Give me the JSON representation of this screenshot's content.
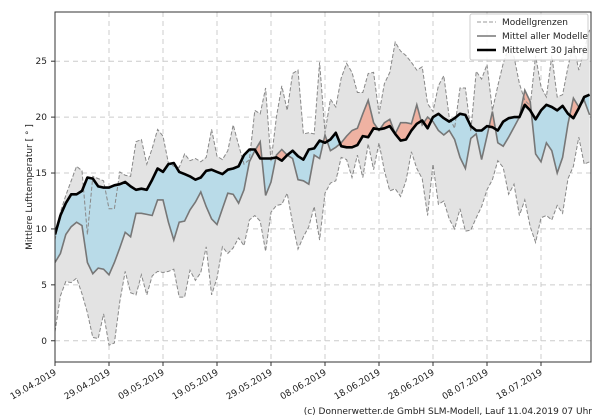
{
  "chart_data": {
    "type": "line",
    "ylabel": "Mittlere Lufttemperatur [ ° ]",
    "xlabel": "",
    "ylim": [
      -1.9,
      29.4
    ],
    "yticks": [
      0,
      5,
      10,
      15,
      20,
      25
    ],
    "xticks": [
      "19.04.2019",
      "29.04.2019",
      "09.05.2019",
      "19.05.2019",
      "29.05.2019",
      "08.06.2019",
      "18.06.2019",
      "28.06.2019",
      "08.07.2019",
      "18.07.2019"
    ],
    "x_start": "19.04.2019",
    "x_step_days": 1,
    "grid": true,
    "legend_position": "top-right",
    "legend": [
      "Modellgrenzen",
      "Mittel aller Modelle",
      "Mittelwert 30 Jahre"
    ],
    "series": [
      {
        "name": "Modellgrenzen (oben)",
        "values": [
          9,
          11.5,
          13,
          14.3,
          15.6,
          15.2,
          9.5,
          14.7,
          14.5,
          14.3,
          11.8,
          11.8,
          15.1,
          14.8,
          14.7,
          17.8,
          18,
          15.8,
          17.2,
          18.9,
          18.3,
          15.9,
          15.6,
          15.5,
          16.7,
          16.1,
          16.3,
          16,
          16.4,
          18.9,
          16.5,
          16.2,
          17,
          19.3,
          17.5,
          15.8,
          16.2,
          20.6,
          20.3,
          22.6,
          16,
          20,
          22.8,
          20.6,
          23.9,
          24.2,
          18.5,
          18.6,
          18.5,
          24.9,
          18.6,
          21.6,
          20.9,
          23.5,
          24.8,
          24,
          22.2,
          22.2,
          23.9,
          24,
          20.3,
          23,
          24,
          26.7,
          25.9,
          25.5,
          24.9,
          24.2,
          24.5,
          21.2,
          20.5,
          22.8,
          23.7,
          20,
          19,
          22.6,
          22.6,
          18.7,
          24.1,
          23.4,
          24.7,
          20.6,
          22.8,
          24.8,
          26.2,
          25.4,
          23,
          21.5,
          21,
          25.5,
          22.7,
          21.8,
          25.5,
          21.8,
          22,
          24.5,
          26.5,
          24.2,
          26,
          27.8
        ]
      },
      {
        "name": "Modellgrenzen (unten)",
        "values": [
          0.8,
          4,
          5.3,
          5.2,
          5.6,
          4.2,
          2.5,
          0.3,
          0.2,
          2.4,
          -0.4,
          -0.2,
          3.5,
          6.2,
          4.3,
          4.1,
          5.9,
          4.1,
          5.8,
          6.2,
          6.1,
          6.2,
          6.4,
          3.9,
          3.9,
          6.3,
          5.4,
          6.1,
          8.4,
          4.1,
          5.6,
          8.4,
          7.8,
          8.3,
          9.2,
          8.5,
          10.8,
          11.2,
          10.7,
          8,
          11.5,
          12.1,
          12.2,
          13.2,
          10.5,
          8.2,
          9.3,
          10.2,
          12,
          9,
          13.2,
          14.1,
          14.3,
          16.4,
          16.2,
          14.6,
          16.6,
          14.6,
          17.6,
          15.3,
          17.7,
          15.2,
          13.4,
          13.6,
          12.9,
          14.3,
          16.9,
          15.4,
          14.5,
          11.2,
          15.8,
          12.2,
          12.5,
          10.9,
          10,
          11.8,
          9.8,
          9.9,
          11,
          12,
          13.5,
          14.4,
          16.1,
          15.5,
          13.1,
          14,
          11.2,
          12.6,
          10.2,
          8.8,
          11,
          11.2,
          10.8,
          12.1,
          11.4,
          14.5,
          15.6,
          18.2,
          15.8,
          16
        ]
      },
      {
        "name": "Mittel aller Modelle",
        "values": [
          7,
          7.8,
          9.5,
          10.2,
          10.6,
          10.3,
          7,
          6,
          6.5,
          6.4,
          5.9,
          7,
          8.3,
          9.7,
          9.3,
          11.4,
          11.4,
          11.3,
          11.2,
          12.6,
          12.6,
          10.6,
          9,
          10.6,
          10.7,
          11.7,
          12.4,
          13.3,
          12,
          10.9,
          10.4,
          11.8,
          13.2,
          13.1,
          12.3,
          13.5,
          16,
          17,
          17.8,
          13,
          14.2,
          16.6,
          17.1,
          16.6,
          16.3,
          14.4,
          14.3,
          14,
          16.6,
          16.3,
          18.4,
          17,
          17.3,
          17.7,
          18.3,
          18.8,
          19,
          20.3,
          21.5,
          19.5,
          18.8,
          19.5,
          19.8,
          18.5,
          19.5,
          19.5,
          19.4,
          21.1,
          19.3,
          20,
          19.6,
          18.8,
          18.4,
          18.8,
          18,
          16.4,
          15.4,
          18.1,
          18.5,
          16.2,
          18.3,
          20.5,
          17.7,
          17.4,
          18.2,
          19.1,
          20,
          22.4,
          21.4,
          16.7,
          16,
          17.7,
          17,
          15,
          16.4,
          19.4,
          21.7,
          20.9,
          21.5,
          20.2
        ]
      },
      {
        "name": "Mittelwert 30 Jahre",
        "values": [
          9.5,
          11.2,
          12.3,
          13.1,
          13.1,
          13.4,
          14.6,
          14.5,
          13.8,
          13.7,
          13.7,
          13.9,
          14,
          14.2,
          13.8,
          13.5,
          13.6,
          13.5,
          14.4,
          15.4,
          15.1,
          15.8,
          15.9,
          15.1,
          14.9,
          14.7,
          14.4,
          14.6,
          15.2,
          15.3,
          15.1,
          14.9,
          15.3,
          15.4,
          15.6,
          16.6,
          17.1,
          17.1,
          16.3,
          16.3,
          16.3,
          16.4,
          16.1,
          16.6,
          17,
          16.5,
          16.2,
          17.1,
          17.2,
          17.9,
          17.7,
          18,
          18.6,
          17.4,
          17.3,
          17.3,
          17.5,
          18.3,
          18.2,
          19,
          18.9,
          19,
          19.2,
          18.5,
          17.9,
          18,
          18.8,
          19.4,
          19.7,
          19,
          20,
          20.3,
          19.9,
          19.6,
          19.9,
          20.3,
          20.2,
          19.2,
          18.8,
          18.8,
          19.2,
          19.1,
          18.8,
          19.6,
          19.9,
          20,
          20,
          21.1,
          20.6,
          19.8,
          20.6,
          21.1,
          20.9,
          20.6,
          21,
          20.3,
          19.9,
          20.8,
          21.8,
          22
        ]
      }
    ],
    "colors": {
      "band": "#e3e3e3",
      "below": "#b9dbe8",
      "above": "#efb2a2",
      "model": "#777777",
      "clim": "#000000"
    }
  },
  "credit": "(c) Donnerwetter.de GmbH SLM-Modell, Lauf 11.04.2019 07 Uhr"
}
